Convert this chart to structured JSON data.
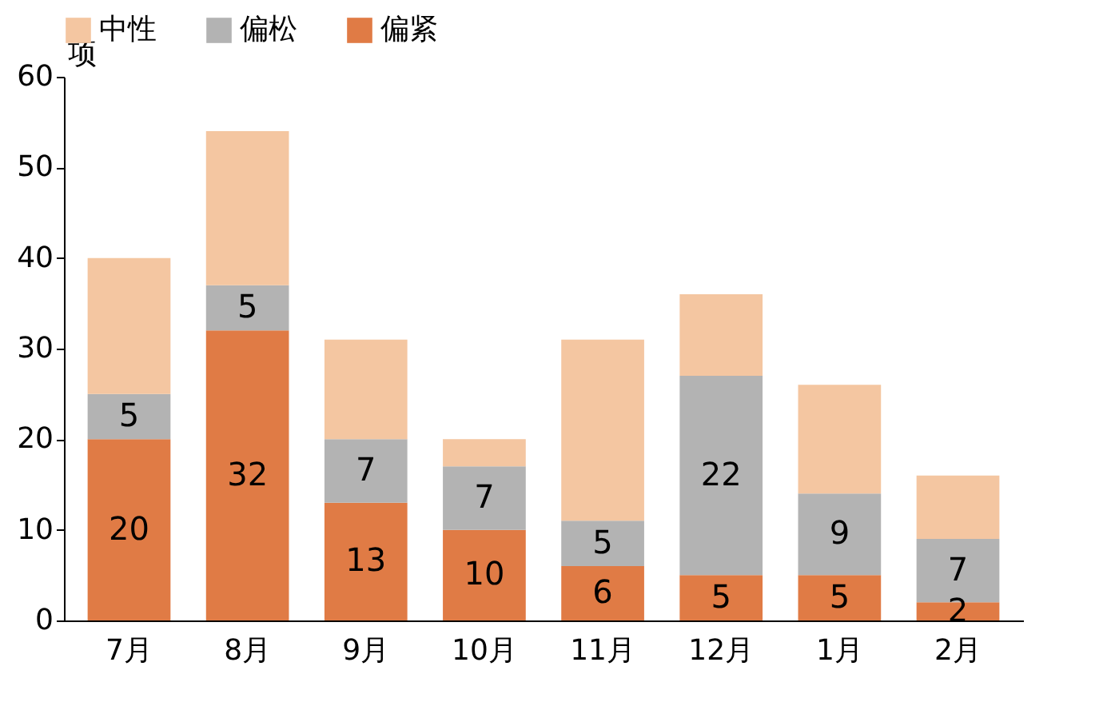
{
  "chart_data": {
    "type": "bar",
    "stacked": true,
    "ylabel": "项",
    "categories": [
      "7月",
      "8月",
      "9月",
      "10月",
      "11月",
      "12月",
      "1月",
      "2月"
    ],
    "ylim": [
      0,
      60
    ],
    "yticks": [
      0,
      10,
      20,
      30,
      40,
      50,
      60
    ],
    "legend": "top",
    "series": [
      {
        "name": "偏紧",
        "color": "#e07b45",
        "values": [
          20,
          32,
          13,
          10,
          6,
          5,
          5,
          2
        ],
        "value_labels": [
          "20",
          "32",
          "13",
          "10",
          "6",
          "5",
          "5",
          "2"
        ]
      },
      {
        "name": "偏松",
        "color": "#b3b3b3",
        "values": [
          5,
          5,
          7,
          7,
          5,
          22,
          9,
          7
        ],
        "value_labels": [
          "5",
          "5",
          "7",
          "7",
          "5",
          "22",
          "9",
          "7"
        ]
      },
      {
        "name": "中性",
        "color": "#f4c6a1",
        "values": [
          15,
          17,
          11,
          3,
          20,
          9,
          12,
          7
        ]
      }
    ]
  }
}
